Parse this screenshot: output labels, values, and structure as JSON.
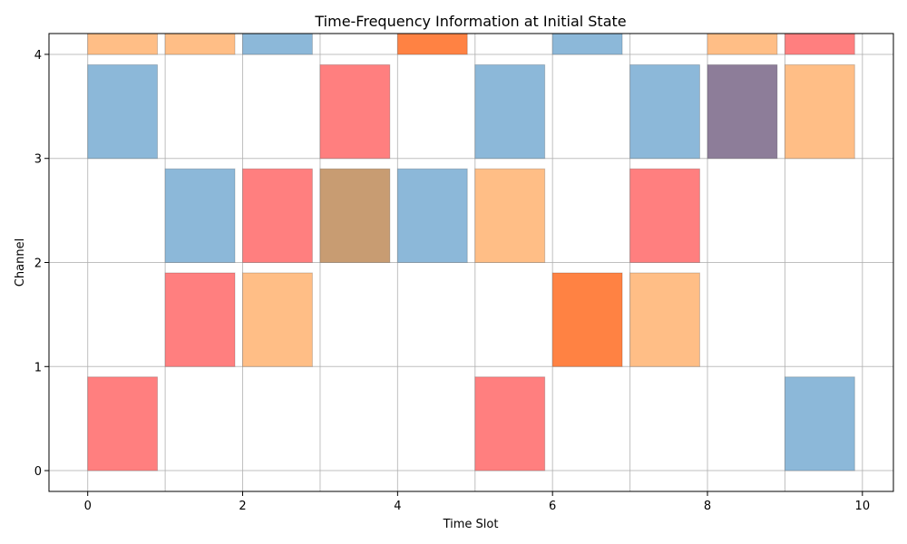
{
  "chart_data": {
    "type": "heatmap",
    "title": "Time-Frequency Information at Initial State",
    "xlabel": "Time Slot",
    "ylabel": "Channel",
    "xlim": [
      -0.5,
      10.4
    ],
    "ylim": [
      -0.2,
      4.2
    ],
    "xticks": [
      0,
      2,
      4,
      6,
      8,
      10
    ],
    "yticks": [
      0,
      1,
      2,
      3,
      4
    ],
    "grid": true,
    "colors": {
      "blue": "#8cb8d9",
      "orange": "#ffbe86",
      "red": "#ff7f7f",
      "darkorange": "#ff8243",
      "brown": "#c89c72",
      "purple": "#8d7d99"
    },
    "block_width": 0.9,
    "block_height": 0.9,
    "blocks": [
      {
        "time": 0,
        "channel": 0,
        "color": "red"
      },
      {
        "time": 0,
        "channel": 3,
        "color": "blue"
      },
      {
        "time": 0,
        "channel": 4,
        "color": "orange"
      },
      {
        "time": 1,
        "channel": 1,
        "color": "red"
      },
      {
        "time": 1,
        "channel": 2,
        "color": "blue"
      },
      {
        "time": 1,
        "channel": 4,
        "color": "orange"
      },
      {
        "time": 2,
        "channel": 1,
        "color": "orange"
      },
      {
        "time": 2,
        "channel": 2,
        "color": "red"
      },
      {
        "time": 2,
        "channel": 4,
        "color": "blue"
      },
      {
        "time": 3,
        "channel": 2,
        "color": "brown"
      },
      {
        "time": 3,
        "channel": 3,
        "color": "red"
      },
      {
        "time": 4,
        "channel": 2,
        "color": "blue"
      },
      {
        "time": 4,
        "channel": 4,
        "color": "darkorange"
      },
      {
        "time": 5,
        "channel": 0,
        "color": "red"
      },
      {
        "time": 5,
        "channel": 2,
        "color": "orange"
      },
      {
        "time": 5,
        "channel": 3,
        "color": "blue"
      },
      {
        "time": 6,
        "channel": 1,
        "color": "darkorange"
      },
      {
        "time": 6,
        "channel": 4,
        "color": "blue"
      },
      {
        "time": 7,
        "channel": 1,
        "color": "orange"
      },
      {
        "time": 7,
        "channel": 2,
        "color": "red"
      },
      {
        "time": 7,
        "channel": 3,
        "color": "blue"
      },
      {
        "time": 8,
        "channel": 3,
        "color": "purple"
      },
      {
        "time": 8,
        "channel": 4,
        "color": "orange"
      },
      {
        "time": 9,
        "channel": 0,
        "color": "blue"
      },
      {
        "time": 9,
        "channel": 3,
        "color": "orange"
      },
      {
        "time": 9,
        "channel": 4,
        "color": "red"
      }
    ]
  }
}
